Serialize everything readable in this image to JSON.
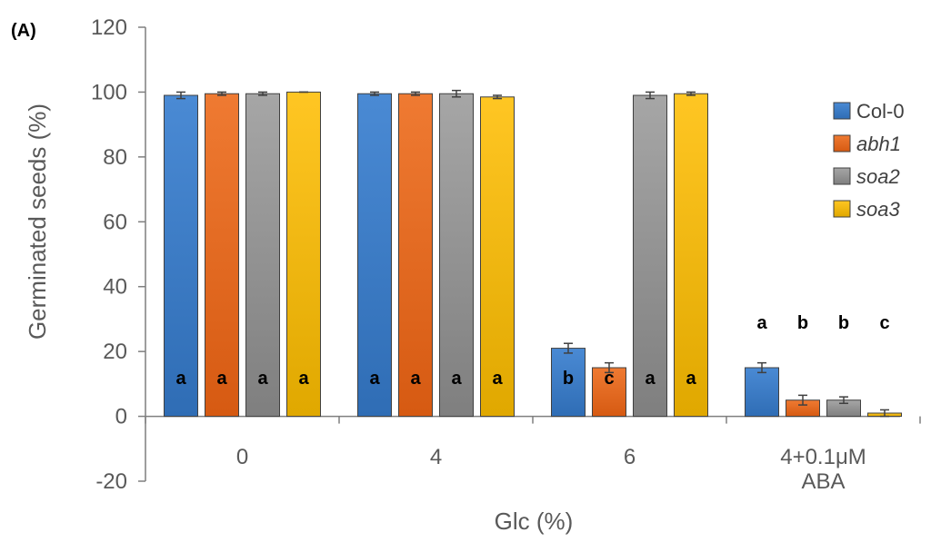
{
  "chart_data": {
    "type": "bar",
    "panel_label": "(A)",
    "xlabel": "Glc (%)",
    "ylabel": "Germinated seeds (%)",
    "ylim": [
      -20,
      120
    ],
    "yticks": [
      -20,
      0,
      20,
      40,
      60,
      80,
      100,
      120
    ],
    "categories": [
      {
        "lines": [
          "0"
        ]
      },
      {
        "lines": [
          "4"
        ]
      },
      {
        "lines": [
          "6"
        ]
      },
      {
        "lines": [
          "4+0.1μM",
          "ABA"
        ]
      }
    ],
    "legend_position": "right",
    "series": [
      {
        "name": "Col-0",
        "italic": false,
        "color": "#4a8ad4",
        "color_dark": "#2f6db5",
        "values": [
          99,
          99.5,
          21,
          15
        ],
        "errors": [
          1,
          0.5,
          1.5,
          1.5
        ],
        "labels": [
          "a",
          "a",
          "b",
          "a"
        ],
        "label_pos": [
          "inside",
          "inside",
          "inside",
          "above"
        ]
      },
      {
        "name": "abh1",
        "italic": true,
        "color": "#ef7a32",
        "color_dark": "#d65a12",
        "values": [
          99.5,
          99.5,
          15,
          5
        ],
        "errors": [
          0.5,
          0.5,
          1.5,
          1.5
        ],
        "labels": [
          "a",
          "a",
          "c",
          "b"
        ],
        "label_pos": [
          "inside",
          "inside",
          "inside",
          "above"
        ]
      },
      {
        "name": "soa2",
        "italic": true,
        "color": "#a6a6a6",
        "color_dark": "#7f7f7f",
        "values": [
          99.5,
          99.5,
          99,
          5
        ],
        "errors": [
          0.5,
          1,
          1,
          1
        ],
        "labels": [
          "a",
          "a",
          "a",
          "b"
        ],
        "label_pos": [
          "inside",
          "inside",
          "inside",
          "above"
        ]
      },
      {
        "name": "soa3",
        "italic": true,
        "color": "#ffc623",
        "color_dark": "#e0a800",
        "values": [
          100,
          98.5,
          99.5,
          1
        ],
        "errors": [
          0,
          0.5,
          0.5,
          1
        ],
        "labels": [
          "a",
          "a",
          "a",
          "c"
        ],
        "label_pos": [
          "inside",
          "inside",
          "inside",
          "above"
        ]
      }
    ]
  }
}
